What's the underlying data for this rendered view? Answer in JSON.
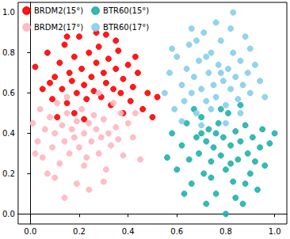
{
  "chart_data": {
    "type": "scatter",
    "xlim": [
      -0.05,
      1.05
    ],
    "ylim": [
      -0.05,
      1.05
    ],
    "xticks": [
      {
        "value": 0,
        "label": "0.0"
      },
      {
        "value": 0.2,
        "label": "0.2"
      },
      {
        "value": 0.4,
        "label": "0.4"
      },
      {
        "value": 0.6,
        "label": "0.6"
      },
      {
        "value": 0.8,
        "label": "0.8"
      },
      {
        "value": 1,
        "label": "1.0"
      }
    ],
    "yticks": [
      {
        "value": 0,
        "label": "0.0"
      },
      {
        "value": 0.2,
        "label": "0.2"
      },
      {
        "value": 0.4,
        "label": "0.4"
      },
      {
        "value": 0.6,
        "label": "0.6"
      },
      {
        "value": 0.8,
        "label": "0.8"
      },
      {
        "value": 1,
        "label": "1.0"
      }
    ],
    "grid": false,
    "legend": "upper left",
    "marker": "circle",
    "series": [
      {
        "name": "BRDM2(15°)",
        "color": "#ff0000",
        "x": [
          0.02,
          0.05,
          0.07,
          0.09,
          0.1,
          0.12,
          0.13,
          0.14,
          0.15,
          0.16,
          0.17,
          0.18,
          0.19,
          0.2,
          0.21,
          0.22,
          0.23,
          0.24,
          0.25,
          0.26,
          0.27,
          0.28,
          0.29,
          0.3,
          0.31,
          0.32,
          0.33,
          0.34,
          0.35,
          0.36,
          0.37,
          0.38,
          0.4,
          0.41,
          0.42,
          0.44,
          0.46,
          0.48,
          0.5,
          0.27,
          0.31,
          0.18,
          0.11,
          0.22,
          0.08,
          0.35,
          0.43,
          0.52,
          0.38,
          0.15
        ],
        "values": [
          0.73,
          0.62,
          0.8,
          0.57,
          0.68,
          0.75,
          0.62,
          0.84,
          0.55,
          0.7,
          0.66,
          0.78,
          0.6,
          0.88,
          0.72,
          0.64,
          0.57,
          0.8,
          0.68,
          0.61,
          0.75,
          0.83,
          0.58,
          0.7,
          0.65,
          0.77,
          0.54,
          0.62,
          0.72,
          0.81,
          0.6,
          0.67,
          0.74,
          0.56,
          0.63,
          0.7,
          0.52,
          0.6,
          0.48,
          0.9,
          0.89,
          0.5,
          0.48,
          0.47,
          0.65,
          0.86,
          0.78,
          0.58,
          0.5,
          0.88
        ]
      },
      {
        "name": "BRDM2(17°)",
        "color": "#ffb6c1",
        "x": [
          0.01,
          0.03,
          0.04,
          0.05,
          0.06,
          0.07,
          0.08,
          0.09,
          0.1,
          0.11,
          0.12,
          0.13,
          0.14,
          0.15,
          0.16,
          0.17,
          0.18,
          0.19,
          0.2,
          0.21,
          0.22,
          0.23,
          0.24,
          0.25,
          0.26,
          0.27,
          0.28,
          0.29,
          0.3,
          0.31,
          0.32,
          0.33,
          0.34,
          0.35,
          0.36,
          0.38,
          0.4,
          0.42,
          0.45,
          0.19,
          0.24,
          0.15,
          0.1,
          0.28,
          0.22,
          0.02,
          0.37,
          0.14,
          0.3,
          0.43
        ],
        "values": [
          0.45,
          0.36,
          0.52,
          0.28,
          0.42,
          0.2,
          0.48,
          0.33,
          0.4,
          0.55,
          0.25,
          0.44,
          0.36,
          0.5,
          0.3,
          0.42,
          0.38,
          0.46,
          0.33,
          0.52,
          0.4,
          0.28,
          0.45,
          0.36,
          0.49,
          0.42,
          0.3,
          0.38,
          0.47,
          0.22,
          0.4,
          0.34,
          0.55,
          0.43,
          0.37,
          0.29,
          0.45,
          0.38,
          0.27,
          0.15,
          0.12,
          0.58,
          0.18,
          0.6,
          0.24,
          0.3,
          0.5,
          0.08,
          0.16,
          0.5
        ]
      },
      {
        "name": "BTR60(15°)",
        "color": "#20b2aa",
        "x": [
          0.56,
          0.58,
          0.6,
          0.62,
          0.64,
          0.65,
          0.66,
          0.68,
          0.69,
          0.7,
          0.71,
          0.72,
          0.73,
          0.74,
          0.75,
          0.76,
          0.77,
          0.78,
          0.79,
          0.8,
          0.81,
          0.82,
          0.83,
          0.84,
          0.85,
          0.86,
          0.87,
          0.88,
          0.89,
          0.9,
          0.91,
          0.92,
          0.93,
          0.94,
          0.95,
          0.96,
          0.98,
          1.0,
          0.8,
          0.84,
          0.72,
          0.78,
          0.67,
          0.63,
          0.86,
          0.74,
          0.82,
          0.7,
          0.88,
          0.76
        ],
        "values": [
          0.28,
          0.4,
          0.22,
          0.34,
          0.45,
          0.27,
          0.15,
          0.38,
          0.3,
          0.48,
          0.2,
          0.36,
          0.42,
          0.26,
          0.33,
          0.1,
          0.45,
          0.29,
          0.38,
          0.22,
          0.5,
          0.34,
          0.16,
          0.41,
          0.27,
          0.36,
          0.05,
          0.44,
          0.3,
          0.2,
          0.38,
          0.26,
          0.12,
          0.33,
          0.42,
          0.24,
          0.35,
          0.4,
          0.0,
          0.08,
          0.05,
          0.52,
          0.52,
          0.1,
          0.54,
          0.18,
          0.25,
          0.4,
          0.15,
          0.4
        ]
      },
      {
        "name": "BTR60(17°)",
        "color": "#87ceeb",
        "x": [
          0.55,
          0.57,
          0.59,
          0.6,
          0.62,
          0.63,
          0.64,
          0.65,
          0.66,
          0.67,
          0.68,
          0.69,
          0.7,
          0.71,
          0.72,
          0.73,
          0.74,
          0.75,
          0.76,
          0.77,
          0.78,
          0.79,
          0.8,
          0.81,
          0.82,
          0.83,
          0.84,
          0.85,
          0.86,
          0.87,
          0.88,
          0.89,
          0.9,
          0.92,
          0.94,
          0.83,
          0.76,
          0.7,
          0.8,
          0.62,
          0.58,
          0.66,
          0.9,
          0.74,
          0.86,
          0.96,
          0.72,
          0.78,
          0.68,
          0.82
        ],
        "values": [
          0.6,
          0.7,
          0.52,
          0.78,
          0.64,
          0.56,
          0.72,
          0.84,
          0.6,
          0.68,
          0.5,
          0.76,
          0.62,
          0.9,
          0.56,
          0.7,
          0.8,
          0.64,
          0.58,
          0.74,
          0.86,
          0.66,
          0.54,
          0.72,
          0.62,
          0.8,
          0.68,
          0.57,
          0.76,
          0.64,
          0.88,
          0.7,
          0.6,
          0.74,
          0.66,
          1.0,
          0.95,
          0.44,
          0.45,
          0.46,
          0.82,
          0.92,
          0.82,
          0.52,
          0.5,
          0.58,
          0.78,
          0.7,
          0.86,
          0.92
        ]
      }
    ]
  }
}
